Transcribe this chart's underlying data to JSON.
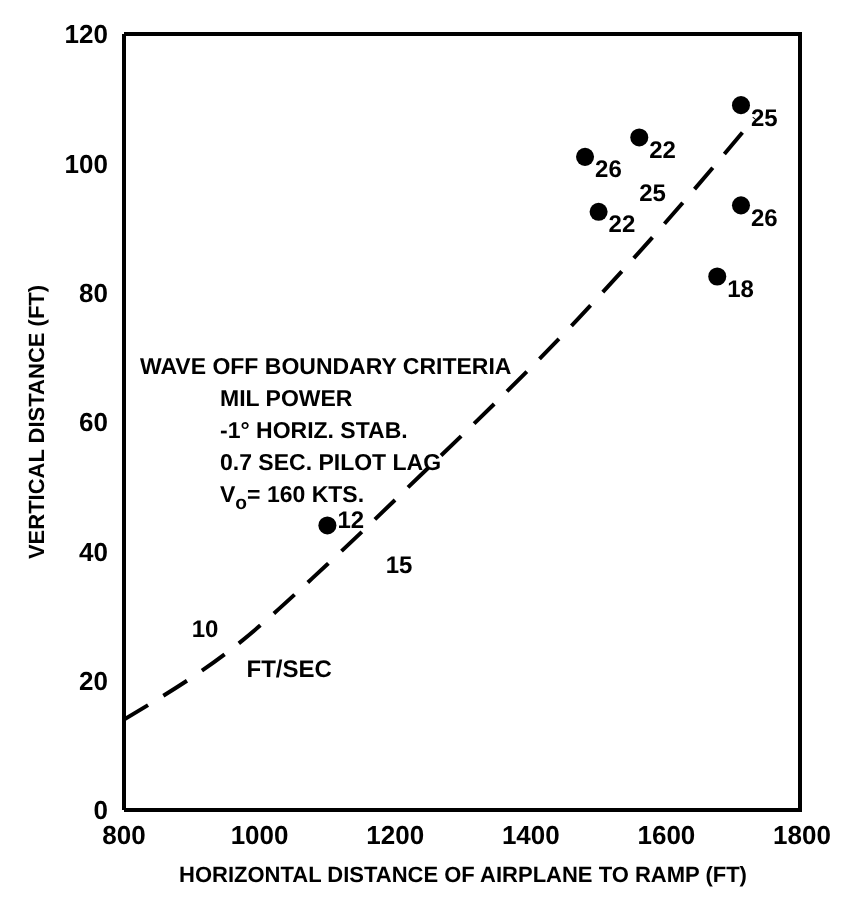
{
  "chart_data": {
    "type": "scatter",
    "xlabel": "HORIZONTAL DISTANCE OF AIRPLANE TO RAMP (FT)",
    "ylabel": "VERTICAL DISTANCE (FT)",
    "xlim": [
      800,
      1800
    ],
    "ylim": [
      0,
      120
    ],
    "xticks": [
      800,
      1000,
      1200,
      1400,
      1600,
      1800
    ],
    "yticks": [
      0,
      20,
      40,
      60,
      80,
      100,
      120
    ],
    "series": [
      {
        "marker": "circle",
        "color": "#000000",
        "x": [
          1100,
          1480,
          1500,
          1560,
          1710,
          1710,
          1675
        ],
        "values": [
          44,
          101,
          92.5,
          104,
          109,
          93.5,
          82.5
        ]
      },
      {
        "type": "line",
        "marker": "none",
        "color": "#000000",
        "line_style": "dashed",
        "x": [
          800,
          960,
          1100,
          1220,
          1470,
          1600,
          1730
        ],
        "values": [
          14,
          25,
          38,
          50,
          76,
          91,
          107
        ]
      }
    ],
    "annotations": [
      "WAVE OFF BOUNDARY CRITERIA",
      "MIL POWER",
      "-1° HORIZ. STAB.",
      "0.7 SEC. PILOT LAG",
      "V$_{o}$= 160 KTS.",
      {
        "text": "12",
        "x": 1100,
        "y": 44
      },
      {
        "text": "26",
        "x": 1480,
        "y": 101
      },
      {
        "text": "22",
        "x": 1500,
        "y": 92.5
      },
      {
        "text": "22",
        "x": 1560,
        "y": 104
      },
      {
        "text": "25",
        "x": 1710,
        "y": 109
      },
      {
        "text": "26",
        "x": 1710,
        "y": 93.5
      },
      {
        "text": "18",
        "x": 1675,
        "y": 82.5
      },
      {
        "text": "10",
        "x": 960,
        "y": 25
      },
      {
        "text": "FT/SEC",
        "x": 960,
        "y": 25
      },
      {
        "text": "15",
        "x": 1130,
        "y": 41
      },
      {
        "text": "25",
        "x": 1620,
        "y": 93
      }
    ]
  }
}
